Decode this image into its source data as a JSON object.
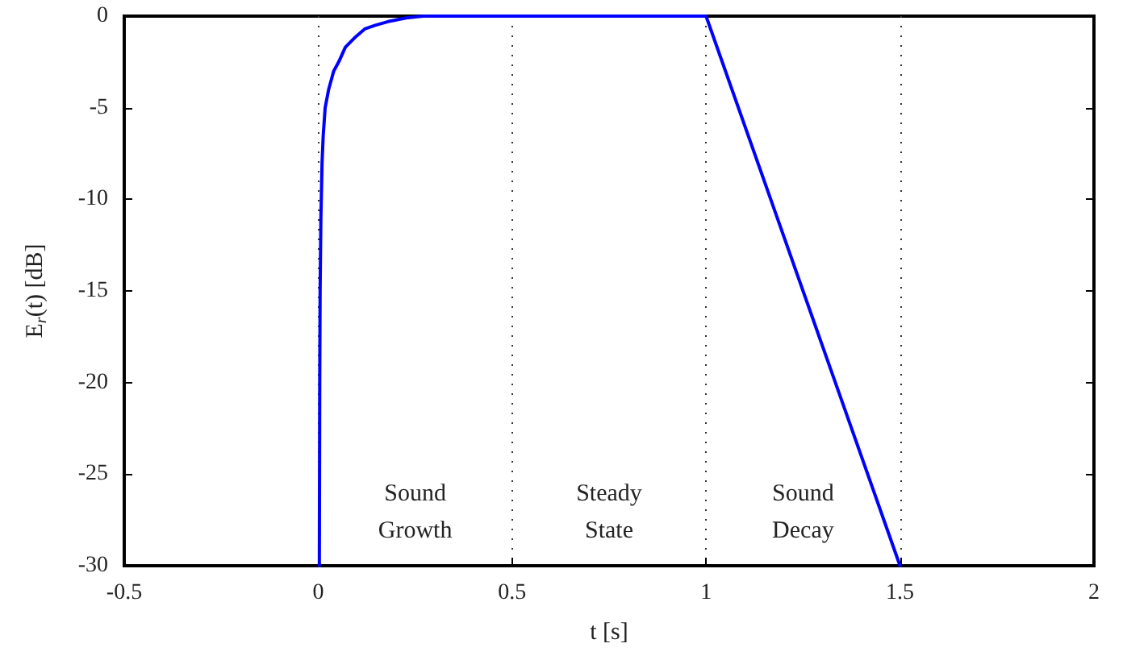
{
  "chart_data": {
    "type": "line",
    "xlabel": "t [s]",
    "ylabel": "E$_{r}$(t) [dB]",
    "series": [
      {
        "color": "#0000ff",
        "x": [
          0.003,
          0.004,
          0.005,
          0.007,
          0.01,
          0.013,
          0.018,
          0.027,
          0.04,
          0.053,
          0.07,
          0.093,
          0.12,
          0.147,
          0.18,
          0.227,
          0.27,
          0.32,
          0.4,
          0.6,
          0.8,
          1.0,
          1.5
        ],
        "values": [
          -30,
          -20,
          -15,
          -11,
          -8,
          -6.5,
          -5,
          -4,
          -3,
          -2.5,
          -1.7,
          -1.2,
          -0.7,
          -0.5,
          -0.3,
          -0.1,
          0,
          0,
          0,
          0,
          0,
          0,
          -30
        ]
      }
    ],
    "xlim": [
      -0.5,
      2
    ],
    "xticks": [
      -0.5,
      0,
      0.5,
      1,
      1.5,
      2
    ],
    "ylim": [
      -30,
      0
    ],
    "yticks": [
      -30,
      -25,
      -20,
      -15,
      -10,
      -5,
      0
    ],
    "grid": "x",
    "marker": "none",
    "line_style": "solid",
    "annotations": [
      "Sound\nGrowth",
      "Steady\nState",
      "Sound\nDecay"
    ]
  }
}
